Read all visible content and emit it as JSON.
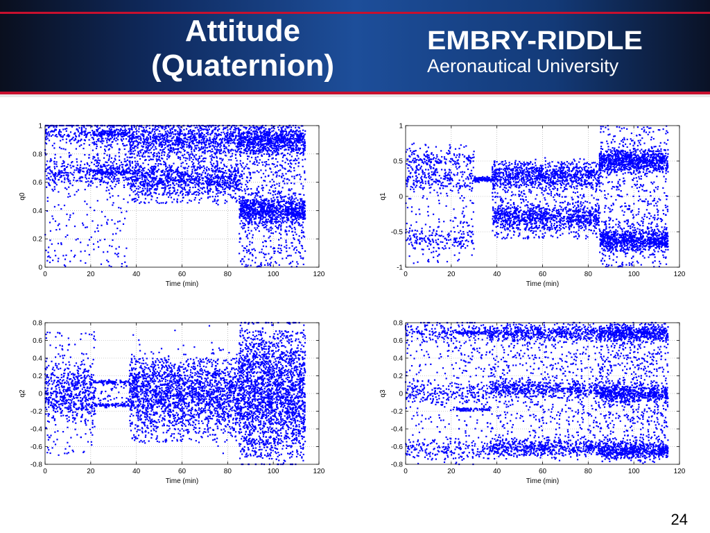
{
  "slide": {
    "title_line1": "Attitude",
    "title_line2": "(Quaternion)",
    "logo_line1": "EMBRY-RIDDLE",
    "logo_line2": "Aeronautical University",
    "page_number": "24"
  },
  "colors": {
    "marker": "#0000ff",
    "banner_red": "#c8102e",
    "banner_blue": "#1d4e9a"
  },
  "chart_data": [
    {
      "type": "scatter",
      "ylabel": "q0",
      "xlabel": "Time (min)",
      "xlim": [
        0,
        120
      ],
      "ylim": [
        0,
        1
      ],
      "xticks": [
        0,
        20,
        40,
        60,
        80,
        100,
        120
      ],
      "yticks": [
        0,
        0.2,
        0.4,
        0.6,
        0.8,
        1
      ],
      "ytick_labels": [
        "0",
        "0.2",
        "0.4",
        "0.6",
        "0.8",
        "1"
      ],
      "grid": true,
      "segments": [
        {
          "x": [
            0,
            37
          ],
          "levels": [
            0.95,
            0.67
          ],
          "spread": 0.05,
          "band": [
            0.0,
            0.96
          ],
          "density": 900
        },
        {
          "x": [
            21,
            37
          ],
          "levels": [
            0.94,
            0.67
          ],
          "spread": 0.01,
          "band": [
            0.66,
            0.95
          ],
          "density": 250
        },
        {
          "x": [
            37,
            85
          ],
          "levels": [
            0.9,
            0.62
          ],
          "spread": 0.06,
          "band": [
            0.45,
            1.0
          ],
          "density": 2200
        },
        {
          "x": [
            85,
            114
          ],
          "levels": [
            0.9,
            0.4
          ],
          "spread": 0.05,
          "band": [
            0.0,
            0.92
          ],
          "density": 2400
        }
      ]
    },
    {
      "type": "scatter",
      "ylabel": "q1",
      "xlabel": "Time (min)",
      "xlim": [
        0,
        120
      ],
      "ylim": [
        -1,
        1
      ],
      "xticks": [
        0,
        20,
        40,
        60,
        80,
        100,
        120
      ],
      "yticks": [
        -1,
        -0.5,
        0,
        0.5,
        1
      ],
      "ytick_labels": [
        "-1",
        "-0.5",
        "0",
        "0.5",
        "1"
      ],
      "grid": true,
      "segments": [
        {
          "x": [
            0,
            30
          ],
          "levels": [
            0.25,
            0.5,
            -0.6
          ],
          "spread": 0.08,
          "band": [
            -0.95,
            0.75
          ],
          "density": 700
        },
        {
          "x": [
            30,
            38
          ],
          "levels": [
            0.24
          ],
          "spread": 0.01,
          "band": [
            0.2,
            0.28
          ],
          "density": 150
        },
        {
          "x": [
            38,
            85
          ],
          "levels": [
            0.3,
            -0.3
          ],
          "spread": 0.09,
          "band": [
            -0.6,
            0.5
          ],
          "density": 2200
        },
        {
          "x": [
            85,
            115
          ],
          "levels": [
            0.5,
            -0.62
          ],
          "spread": 0.08,
          "band": [
            -1.0,
            1.0
          ],
          "density": 2200
        }
      ]
    },
    {
      "type": "scatter",
      "ylabel": "q2",
      "xlabel": "Time (min)",
      "xlim": [
        0,
        120
      ],
      "ylim": [
        -0.8,
        0.8
      ],
      "xticks": [
        0,
        20,
        40,
        60,
        80,
        100,
        120
      ],
      "yticks": [
        -0.8,
        -0.6,
        -0.4,
        -0.2,
        0,
        0.2,
        0.4,
        0.6,
        0.8
      ],
      "ytick_labels": [
        "-0.8",
        "-0.6",
        "-0.4",
        "-0.2",
        "0",
        "0.2",
        "0.4",
        "0.6",
        "0.8"
      ],
      "grid": true,
      "segments": [
        {
          "x": [
            0,
            22
          ],
          "levels": [
            0.1,
            -0.1
          ],
          "spread": 0.12,
          "band": [
            -0.7,
            0.7
          ],
          "density": 700
        },
        {
          "x": [
            22,
            37
          ],
          "levels": [
            0.13,
            -0.13
          ],
          "spread": 0.01,
          "band": [
            -0.16,
            0.16
          ],
          "density": 200
        },
        {
          "x": [
            37,
            85
          ],
          "levels": [
            0.0
          ],
          "spread": 0.2,
          "band": [
            -0.55,
            0.4
          ],
          "density": 2200
        },
        {
          "x": [
            85,
            114
          ],
          "levels": [
            0.0
          ],
          "spread": 0.35,
          "band": [
            -0.72,
            0.72
          ],
          "density": 2400
        }
      ]
    },
    {
      "type": "scatter",
      "ylabel": "q3",
      "xlabel": "Time (min)",
      "xlim": [
        0,
        120
      ],
      "ylim": [
        -0.8,
        0.8
      ],
      "xticks": [
        0,
        20,
        40,
        60,
        80,
        100,
        120
      ],
      "yticks": [
        -0.8,
        -0.6,
        -0.4,
        -0.2,
        0,
        0.2,
        0.4,
        0.6,
        0.8
      ],
      "ytick_labels": [
        "-0.8",
        "-0.6",
        "-0.4",
        "-0.2",
        "0",
        "0.2",
        "0.4",
        "0.6",
        "0.8"
      ],
      "grid": true,
      "segments": [
        {
          "x": [
            0,
            37
          ],
          "levels": [
            0.7,
            -0.65,
            0.0
          ],
          "spread": 0.06,
          "band": [
            -0.72,
            0.72
          ],
          "density": 800
        },
        {
          "x": [
            22,
            37
          ],
          "levels": [
            0.69,
            -0.18
          ],
          "spread": 0.01,
          "band": [
            -0.2,
            0.7
          ],
          "density": 200
        },
        {
          "x": [
            37,
            85
          ],
          "levels": [
            0.69,
            -0.62,
            0.05
          ],
          "spread": 0.05,
          "band": [
            -0.7,
            0.7
          ],
          "density": 2200
        },
        {
          "x": [
            85,
            115
          ],
          "levels": [
            0.69,
            -0.65,
            0.0
          ],
          "spread": 0.05,
          "band": [
            -0.7,
            0.7
          ],
          "density": 2600
        }
      ]
    }
  ]
}
